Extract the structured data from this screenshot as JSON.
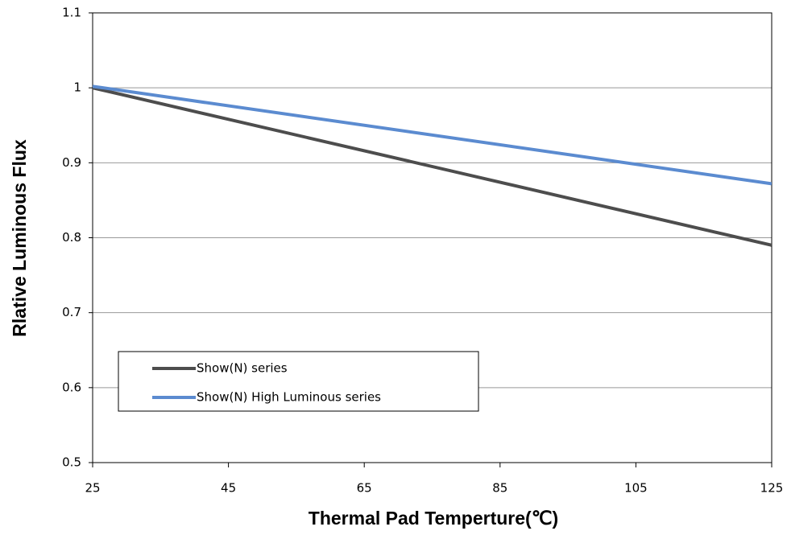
{
  "chart_data": {
    "type": "line",
    "xlabel": "Thermal Pad Temperture(℃)",
    "ylabel": "Rlative Luminous Flux",
    "x": [
      25,
      125
    ],
    "series": [
      {
        "name": "Show(N) series",
        "color": "#4d4d4d",
        "values": [
          1.0,
          0.79
        ]
      },
      {
        "name": "Show(N) High Luminous series",
        "color": "#5b8bd0",
        "values": [
          1.002,
          0.872
        ]
      }
    ],
    "xlim": [
      25,
      125
    ],
    "xticks": [
      25,
      45,
      65,
      85,
      105,
      125
    ],
    "ylim": [
      0.5,
      1.1
    ],
    "yticks": [
      0.5,
      0.6,
      0.7,
      0.8,
      0.9,
      1,
      1.1
    ],
    "grid": true,
    "legend": "lower left"
  }
}
